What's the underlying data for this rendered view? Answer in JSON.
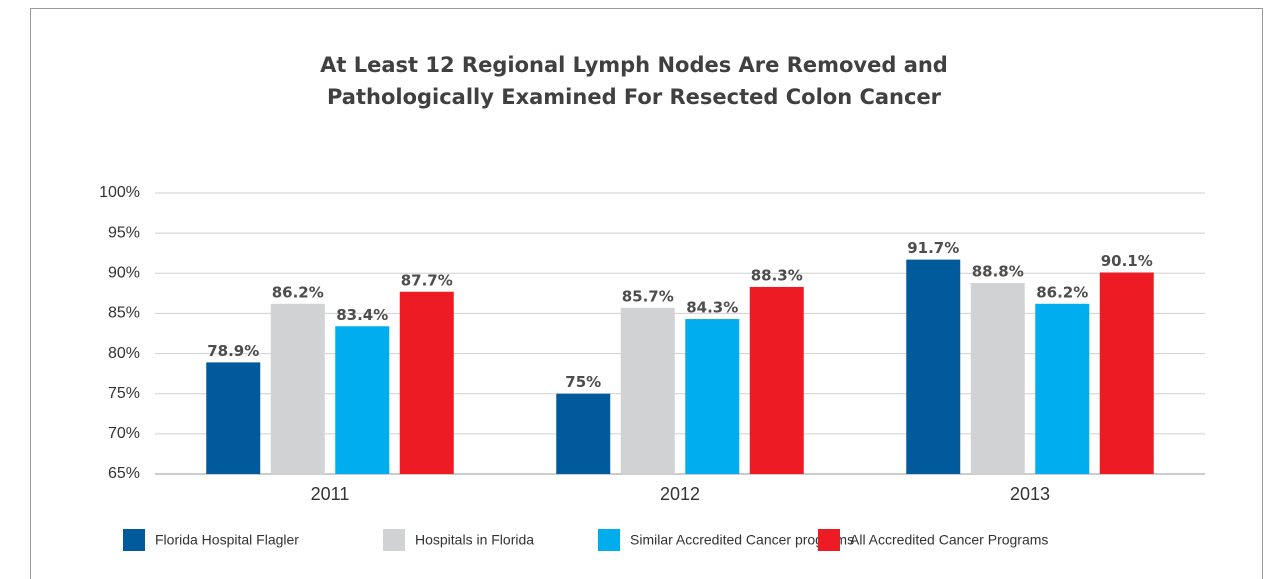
{
  "chart_data": {
    "type": "bar",
    "title": [
      "At Least 12 Regional Lymph Nodes Are Removed and",
      "Pathologically Examined For Resected Colon Cancer"
    ],
    "categories": [
      "2011",
      "2012",
      "2013"
    ],
    "series": [
      {
        "name": "Florida Hospital Flagler",
        "color": "#005a9c",
        "values": [
          78.9,
          75,
          91.7
        ],
        "value_labels": [
          "78.9%",
          "75%",
          "91.7%"
        ]
      },
      {
        "name": "Hospitals in Florida",
        "color": "#d1d2d4",
        "values": [
          86.2,
          85.7,
          88.8
        ],
        "value_labels": [
          "86.2%",
          "85.7%",
          "88.8%"
        ]
      },
      {
        "name": "Similar Accredited Cancer programs",
        "color": "#00aeef",
        "values": [
          83.4,
          84.3,
          86.2
        ],
        "value_labels": [
          "83.4%",
          "84.3%",
          "86.2%"
        ]
      },
      {
        "name": "All Accredited Cancer Programs",
        "color": "#ed1c24",
        "values": [
          87.7,
          88.3,
          90.1
        ],
        "value_labels": [
          "87.7%",
          "88.3%",
          "90.1%"
        ]
      }
    ],
    "ylim": [
      65,
      100
    ],
    "yticks": [
      {
        "value": 65,
        "label": "65%"
      },
      {
        "value": 70,
        "label": "70%"
      },
      {
        "value": 75,
        "label": "75%"
      },
      {
        "value": 80,
        "label": "80%"
      },
      {
        "value": 85,
        "label": "85%"
      },
      {
        "value": 90,
        "label": "90%"
      },
      {
        "value": 95,
        "label": "95%"
      },
      {
        "value": 100,
        "label": "100%"
      }
    ],
    "grid": true,
    "legend": "bottom"
  }
}
